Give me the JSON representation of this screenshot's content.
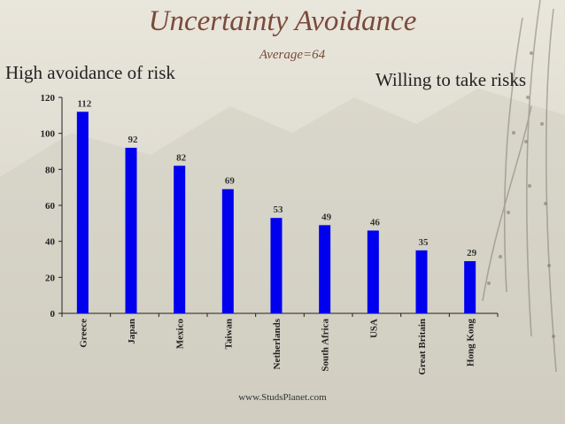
{
  "slide": {
    "title": "Uncertainty Avoidance",
    "subtitle": "Average=64",
    "left_note": "High avoidance of risk",
    "right_note": "Willing to take risks",
    "footer": "www.StudsPlanet.com"
  },
  "colors": {
    "bar": "#0000ee",
    "title": "#7a4a3a"
  },
  "chart_data": {
    "type": "bar",
    "categories": [
      "Greece",
      "Japan",
      "Mexico",
      "Taiwan",
      "Netherlands",
      "South Africa",
      "USA",
      "Great Britain",
      "Hong Kong"
    ],
    "values": [
      112,
      92,
      82,
      69,
      53,
      49,
      46,
      35,
      29
    ],
    "title": "Uncertainty Avoidance",
    "xlabel": "",
    "ylabel": "",
    "ylim": [
      0,
      120
    ],
    "yticks": [
      0,
      20,
      40,
      60,
      80,
      100,
      120
    ],
    "grid": false,
    "data_labels": true
  }
}
